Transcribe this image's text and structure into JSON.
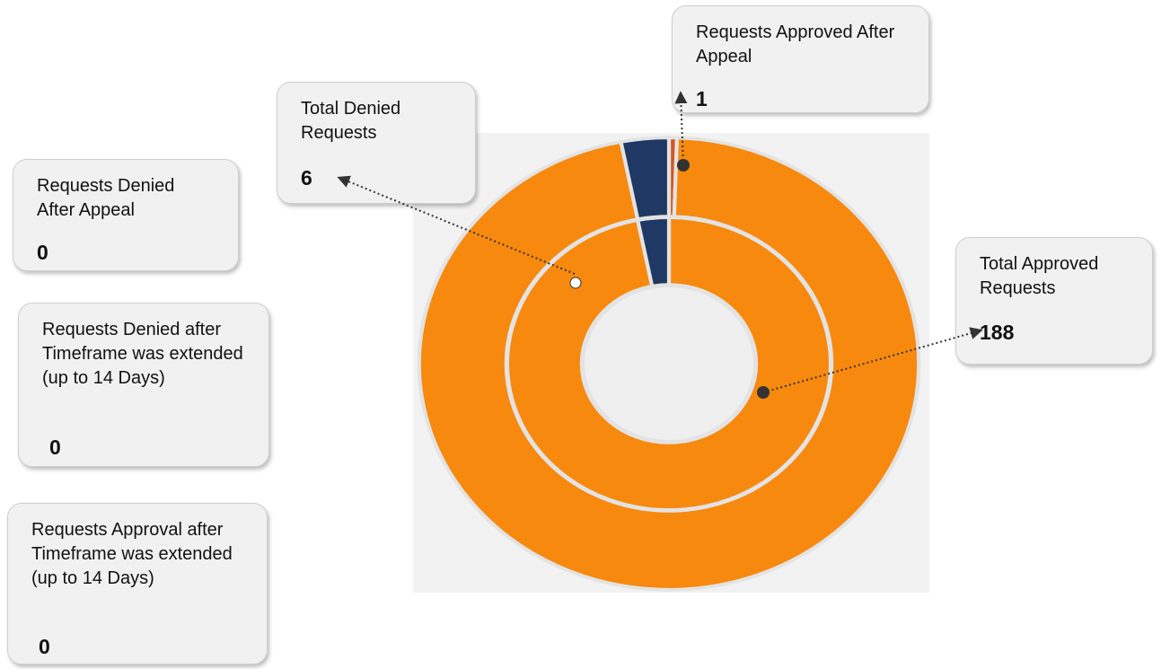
{
  "chart_data": {
    "type": "donut",
    "items": [
      {
        "label": "Requests Approved After Appeal",
        "value": 1,
        "color": "#d4581f"
      },
      {
        "label": "Requests Denied After Appeal",
        "value": 0
      },
      {
        "label": "Requests Denied after Timeframe was extended (up to 14 Days)",
        "value": 0
      },
      {
        "label": "Requests Approval after Timeframe was extended (up to 14 Days)",
        "value": 0
      },
      {
        "label": "Total Approved Requests",
        "value": 188,
        "color": "#f7890f"
      },
      {
        "label": "Total Denied Requests",
        "value": 6,
        "color": "#1f3864"
      }
    ]
  }
}
